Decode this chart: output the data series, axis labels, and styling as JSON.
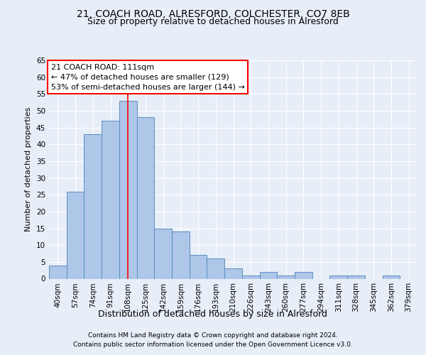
{
  "title_line1": "21, COACH ROAD, ALRESFORD, COLCHESTER, CO7 8EB",
  "title_line2": "Size of property relative to detached houses in Alresford",
  "xlabel": "Distribution of detached houses by size in Alresford",
  "ylabel": "Number of detached properties",
  "footer_line1": "Contains HM Land Registry data © Crown copyright and database right 2024.",
  "footer_line2": "Contains public sector information licensed under the Open Government Licence v3.0.",
  "bar_labels": [
    "40sqm",
    "57sqm",
    "74sqm",
    "91sqm",
    "108sqm",
    "125sqm",
    "142sqm",
    "159sqm",
    "176sqm",
    "193sqm",
    "210sqm",
    "226sqm",
    "243sqm",
    "260sqm",
    "277sqm",
    "294sqm",
    "311sqm",
    "328sqm",
    "345sqm",
    "362sqm",
    "379sqm"
  ],
  "bar_values": [
    4,
    26,
    43,
    47,
    53,
    48,
    15,
    14,
    7,
    6,
    3,
    1,
    2,
    1,
    2,
    0,
    1,
    1,
    0,
    1,
    0
  ],
  "bar_color": "#aec6e8",
  "bar_edge_color": "#5a8fc0",
  "bg_color": "#e8eef8",
  "plot_bg_color": "#e8eef8",
  "grid_color": "#ffffff",
  "annotation_box_text_line1": "21 COACH ROAD: 111sqm",
  "annotation_box_text_line2": "← 47% of detached houses are smaller (129)",
  "annotation_box_text_line3": "53% of semi-detached houses are larger (144) →",
  "red_line_x": 4,
  "ylim": [
    0,
    65
  ],
  "yticks": [
    0,
    5,
    10,
    15,
    20,
    25,
    30,
    35,
    40,
    45,
    50,
    55,
    60,
    65
  ],
  "title1_fontsize": 10,
  "title2_fontsize": 9,
  "ylabel_fontsize": 8,
  "xlabel_fontsize": 9,
  "tick_fontsize": 7.5,
  "footer_fontsize": 6.5,
  "ann_fontsize": 8
}
